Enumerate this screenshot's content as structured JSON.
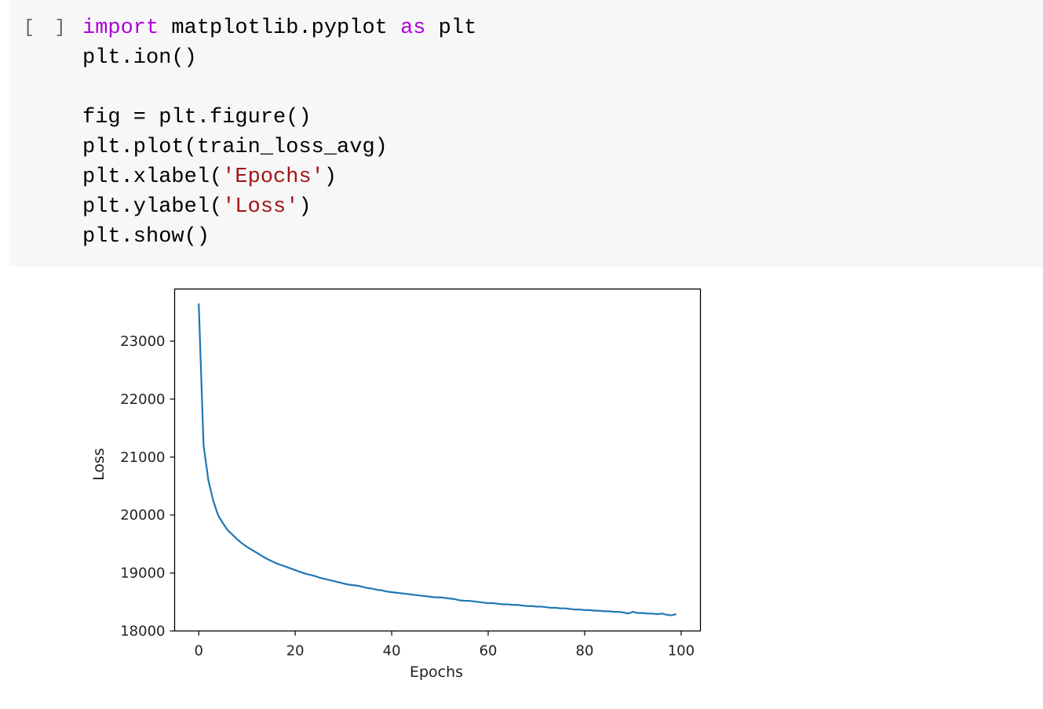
{
  "cell": {
    "run_indicator": "[ ]",
    "code_lines": [
      [
        {
          "t": "import",
          "c": "kw"
        },
        {
          "t": " matplotlib.pyplot ",
          "c": ""
        },
        {
          "t": "as",
          "c": "kw"
        },
        {
          "t": " plt",
          "c": ""
        }
      ],
      [
        {
          "t": "plt.ion()",
          "c": ""
        }
      ],
      [
        {
          "t": "",
          "c": ""
        }
      ],
      [
        {
          "t": "fig = plt.figure()",
          "c": ""
        }
      ],
      [
        {
          "t": "plt.plot(train_loss_avg)",
          "c": ""
        }
      ],
      [
        {
          "t": "plt.xlabel(",
          "c": ""
        },
        {
          "t": "'Epochs'",
          "c": "str"
        },
        {
          "t": ")",
          "c": ""
        }
      ],
      [
        {
          "t": "plt.ylabel(",
          "c": ""
        },
        {
          "t": "'Loss'",
          "c": "str"
        },
        {
          "t": ")",
          "c": ""
        }
      ],
      [
        {
          "t": "plt.show()",
          "c": ""
        }
      ]
    ]
  },
  "chart_data": {
    "type": "line",
    "xlabel": "Epochs",
    "ylabel": "Loss",
    "xlim": [
      -5,
      104
    ],
    "ylim": [
      18000,
      23900
    ],
    "xticks": [
      0,
      20,
      40,
      60,
      80,
      100
    ],
    "xtick_labels": [
      "0",
      "20",
      "40",
      "60",
      "80",
      "100"
    ],
    "yticks": [
      18000,
      19000,
      20000,
      21000,
      22000,
      23000
    ],
    "ytick_labels": [
      "18000",
      "19000",
      "20000",
      "21000",
      "22000",
      "23000"
    ],
    "grid": false,
    "color": "#1f77b4",
    "series": [
      {
        "x": [
          0,
          1,
          2,
          3,
          4,
          5,
          6,
          7,
          8,
          9,
          10,
          11,
          12,
          13,
          14,
          15,
          16,
          17,
          18,
          19,
          20,
          21,
          22,
          23,
          24,
          25,
          26,
          27,
          28,
          29,
          30,
          31,
          32,
          33,
          34,
          35,
          36,
          37,
          38,
          39,
          40,
          41,
          42,
          43,
          44,
          45,
          46,
          47,
          48,
          49,
          50,
          51,
          52,
          53,
          54,
          55,
          56,
          57,
          58,
          59,
          60,
          61,
          62,
          63,
          64,
          65,
          66,
          67,
          68,
          69,
          70,
          71,
          72,
          73,
          74,
          75,
          76,
          77,
          78,
          79,
          80,
          81,
          82,
          83,
          84,
          85,
          86,
          87,
          88,
          89,
          90,
          91,
          92,
          93,
          94,
          95,
          96,
          97,
          98,
          99
        ],
        "y": [
          23650,
          21200,
          20600,
          20250,
          20000,
          19860,
          19740,
          19660,
          19580,
          19510,
          19450,
          19400,
          19350,
          19300,
          19250,
          19210,
          19170,
          19140,
          19110,
          19080,
          19050,
          19020,
          18990,
          18970,
          18950,
          18920,
          18900,
          18880,
          18860,
          18840,
          18820,
          18800,
          18790,
          18780,
          18760,
          18740,
          18730,
          18710,
          18700,
          18680,
          18670,
          18660,
          18650,
          18640,
          18630,
          18620,
          18610,
          18600,
          18590,
          18580,
          18580,
          18570,
          18560,
          18550,
          18530,
          18520,
          18520,
          18510,
          18500,
          18490,
          18480,
          18480,
          18470,
          18460,
          18460,
          18450,
          18450,
          18440,
          18430,
          18430,
          18420,
          18420,
          18410,
          18400,
          18400,
          18390,
          18390,
          18380,
          18370,
          18370,
          18360,
          18360,
          18350,
          18350,
          18340,
          18340,
          18330,
          18330,
          18320,
          18300,
          18330,
          18310,
          18310,
          18300,
          18300,
          18290,
          18300,
          18280,
          18270,
          18290
        ]
      }
    ]
  }
}
